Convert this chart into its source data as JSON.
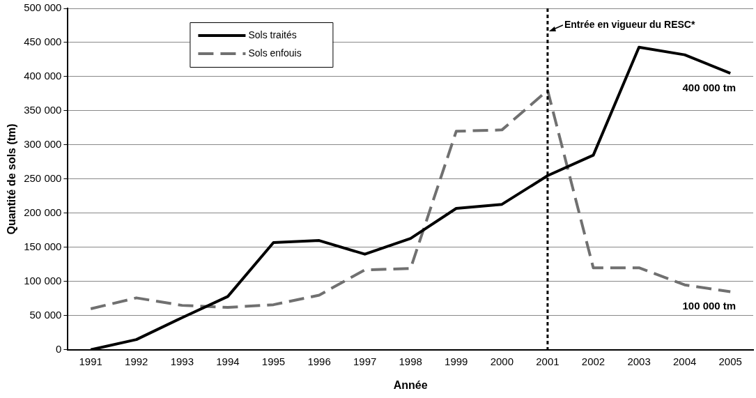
{
  "chart_data": {
    "type": "line",
    "xlabel": "Année",
    "ylabel": "Quantité de sols (tm)",
    "categories": [
      "1991",
      "1992",
      "1993",
      "1994",
      "1995",
      "1996",
      "1997",
      "1998",
      "1999",
      "2000",
      "2001",
      "2002",
      "2003",
      "2004",
      "2005"
    ],
    "series": [
      {
        "name": "Sols traités",
        "color": "#000000",
        "line_style": "solid",
        "values": [
          0,
          15000,
          47000,
          78000,
          157000,
          160000,
          140000,
          163000,
          207000,
          213000,
          255000,
          285000,
          443000,
          432000,
          405000
        ]
      },
      {
        "name": "Sols enfouis",
        "color": "#707070",
        "line_style": "dashed",
        "values": [
          60000,
          76000,
          65000,
          62000,
          66000,
          80000,
          117000,
          119000,
          320000,
          322000,
          380000,
          120000,
          120000,
          95000,
          85000
        ]
      }
    ],
    "ylim": [
      0,
      500000
    ],
    "yticks": [
      {
        "value": 0,
        "label": "0"
      },
      {
        "value": 50000,
        "label": "50 000"
      },
      {
        "value": 100000,
        "label": "100 000"
      },
      {
        "value": 150000,
        "label": "150 000"
      },
      {
        "value": 200000,
        "label": "200 000"
      },
      {
        "value": 250000,
        "label": "250 000"
      },
      {
        "value": 300000,
        "label": "300 000"
      },
      {
        "value": 350000,
        "label": "350 000"
      },
      {
        "value": 400000,
        "label": "400 000"
      },
      {
        "value": 450000,
        "label": "450 000"
      },
      {
        "value": 500000,
        "label": "500 000"
      }
    ],
    "grid": "y",
    "legend": "top left",
    "marker": "none",
    "ref_lines": [
      {
        "axis": "x",
        "value": "2001",
        "label": "Entrée en vigueur du RESC*",
        "color": "#000000",
        "line_style": "dotted"
      }
    ],
    "annotations": [
      {
        "text": "400 000 tm",
        "x": "2005",
        "y": 405000
      },
      {
        "text": "100 000 tm",
        "x": "2005",
        "y": 85000
      }
    ]
  }
}
